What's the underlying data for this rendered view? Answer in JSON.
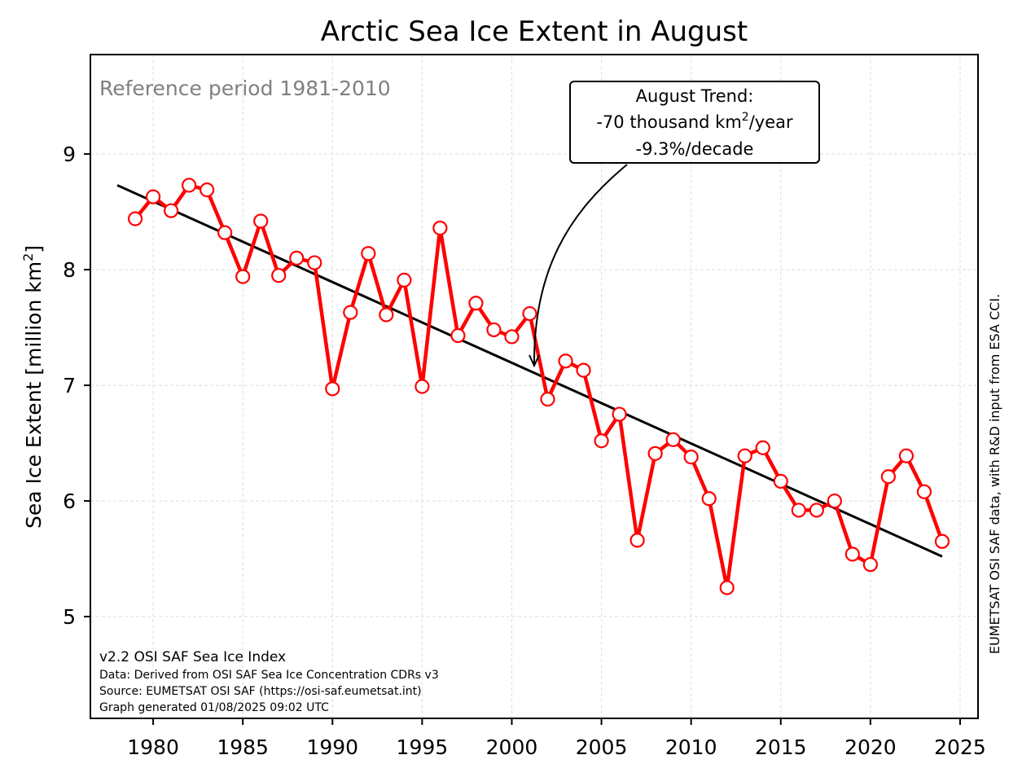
{
  "chart_data": {
    "type": "line",
    "title": "Arctic Sea Ice Extent in August",
    "ylabel_prefix": "Sea Ice Extent [million km",
    "ylabel_sup": "2",
    "ylabel_suffix": "]",
    "xlabel": "",
    "xlim": [
      1976.5,
      2026
    ],
    "ylim": [
      4.12,
      9.86
    ],
    "x_ticks": [
      1980,
      1985,
      1990,
      1995,
      2000,
      2005,
      2010,
      2015,
      2020,
      2025
    ],
    "y_ticks": [
      5,
      6,
      7,
      8,
      9
    ],
    "grid": true,
    "series": [
      {
        "color": "#ff0000",
        "x": [
          1979,
          1980,
          1981,
          1982,
          1983,
          1984,
          1985,
          1986,
          1987,
          1988,
          1989,
          1990,
          1991,
          1992,
          1993,
          1994,
          1995,
          1996,
          1997,
          1998,
          1999,
          2000,
          2001,
          2002,
          2003,
          2004,
          2005,
          2006,
          2007,
          2008,
          2009,
          2010,
          2011,
          2012,
          2013,
          2014,
          2015,
          2016,
          2017,
          2018,
          2019,
          2020,
          2021,
          2022,
          2023,
          2024
        ],
        "y": [
          8.44,
          8.63,
          8.51,
          8.73,
          8.69,
          8.32,
          7.94,
          8.42,
          7.95,
          8.1,
          8.06,
          6.97,
          7.63,
          8.14,
          7.61,
          7.91,
          6.99,
          8.36,
          7.43,
          7.71,
          7.48,
          7.42,
          7.62,
          6.88,
          7.21,
          7.13,
          6.52,
          6.75,
          5.66,
          6.41,
          6.53,
          6.38,
          6.02,
          5.25,
          6.39,
          6.46,
          6.17,
          5.92,
          5.92,
          6.0,
          5.54,
          5.45,
          6.21,
          6.39,
          6.08,
          5.65
        ]
      }
    ],
    "trend": {
      "color": "#000000",
      "x": [
        1978,
        2024
      ],
      "y": [
        8.73,
        5.52
      ]
    },
    "annotations": {
      "reference": "Reference period 1981-2010",
      "trend_box": {
        "line1": "August Trend:",
        "line2_prefix": "-70 thousand km",
        "line2_sup": "2",
        "line2_suffix": "/year",
        "line3": "-9.3%/decade",
        "arrow_target": {
          "x": 2001,
          "y": 7.17
        }
      },
      "credits": [
        "v2.2 OSI SAF Sea Ice Index",
        "Data: Derived from OSI SAF Sea Ice Concentration CDRs v3",
        "Source: EUMETSAT OSI SAF (https://osi-saf.eumetsat.int)",
        "Graph generated 01/08/2025 09:02 UTC"
      ],
      "side_note": "EUMETSAT OSI SAF data, with R&D input from ESA CCI."
    }
  }
}
